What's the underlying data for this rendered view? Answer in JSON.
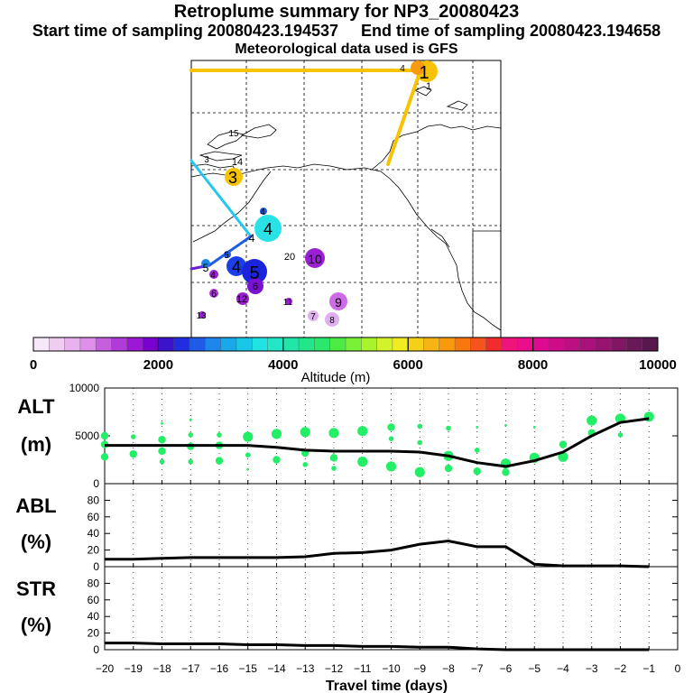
{
  "header": {
    "title": "Retroplume summary for NP3_20080423",
    "start_label": "Start time of sampling 20080423.194537",
    "end_label": "End time of sampling 20080423.194658",
    "met_label": "Meteorological data used is GFS"
  },
  "colorbar": {
    "label": "Altitude (m)",
    "ticks": [
      "0",
      "2000",
      "4000",
      "6000",
      "8000",
      "10000"
    ],
    "colors": [
      "#f6e8f8",
      "#efcdf1",
      "#e7b2ee",
      "#dd8fe9",
      "#c55fde",
      "#b03bd9",
      "#9b18d4",
      "#7a00d0",
      "#3a14cc",
      "#1f2ee0",
      "#1e5ce8",
      "#1e86ea",
      "#1aa8e8",
      "#18c6e6",
      "#22e3e3",
      "#22e6c6",
      "#22e6a6",
      "#22e688",
      "#2ae86a",
      "#4eea44",
      "#7af036",
      "#a8f22e",
      "#d4f22a",
      "#f0ec22",
      "#f6d018",
      "#f8b414",
      "#f89a10",
      "#f8780e",
      "#f6541e",
      "#f02c2e",
      "#f0147a",
      "#ea0e8c",
      "#de0a92",
      "#ce0c8a",
      "#bc1082",
      "#a8127a",
      "#961470",
      "#801664",
      "#6a1858",
      "#58184e"
    ]
  },
  "map_labels": [
    {
      "text": "1",
      "color": "#f7c300",
      "big": true
    },
    {
      "text": "3",
      "color": "#f7c300",
      "big": true
    },
    {
      "text": "4",
      "color": "#2ae2e6",
      "big": true
    },
    {
      "text": "4",
      "color": "#1a3fe6",
      "big": true
    },
    {
      "text": "5",
      "color": "#1a24dc",
      "big": true
    },
    {
      "text": "10",
      "color": "#9b20d4",
      "big": true
    },
    {
      "text": "9",
      "color": "#cd6be6",
      "big": true
    },
    {
      "text": "6",
      "color": "#7a10d0",
      "big": false
    },
    {
      "text": "12",
      "color": "#9b20d4",
      "big": false
    },
    {
      "text": "7",
      "color": "#d89ae8",
      "big": false
    },
    {
      "text": "8",
      "color": "#d89ae8",
      "big": false
    },
    {
      "text": "13",
      "color": "#9b20d4",
      "big": false
    },
    {
      "text": "20",
      "color": "#22e6b8",
      "big": false
    },
    {
      "text": "14",
      "color": "#22e6b8",
      "big": false
    },
    {
      "text": "15",
      "color": "#22e6b8",
      "big": false
    },
    {
      "text": "11",
      "color": "#9b20d4",
      "big": false
    }
  ],
  "chart_data": [
    {
      "type": "scatter",
      "panel": "ALT",
      "ylabel": "ALT\n(m)",
      "ylabel_lines": [
        "ALT",
        "(m)"
      ],
      "ylim": [
        0,
        10000
      ],
      "yticks": [
        "10000",
        "5000",
        "0"
      ],
      "x": [
        -20,
        -19,
        -18,
        -17,
        -16,
        -15,
        -14,
        -13,
        -12,
        -11,
        -10,
        -9,
        -8,
        -7,
        -6,
        -5,
        -4,
        -3,
        -2,
        -1
      ],
      "median_line": [
        4000,
        4000,
        4000,
        4000,
        4000,
        4000,
        3800,
        3500,
        3400,
        3400,
        3400,
        3300,
        2900,
        2200,
        1800,
        2400,
        3300,
        5000,
        6400,
        6800
      ],
      "points": [
        {
          "x": -20,
          "y": 5000,
          "s": 2
        },
        {
          "x": -20,
          "y": 4100,
          "s": 2
        },
        {
          "x": -20,
          "y": 2800,
          "s": 2
        },
        {
          "x": -19,
          "y": 4900,
          "s": 1
        },
        {
          "x": -19,
          "y": 3100,
          "s": 2
        },
        {
          "x": -18,
          "y": 6300,
          "s": 0
        },
        {
          "x": -18,
          "y": 4600,
          "s": 2
        },
        {
          "x": -18,
          "y": 3400,
          "s": 2
        },
        {
          "x": -18,
          "y": 2300,
          "s": 1
        },
        {
          "x": -17,
          "y": 6700,
          "s": 0
        },
        {
          "x": -17,
          "y": 5100,
          "s": 1
        },
        {
          "x": -17,
          "y": 3900,
          "s": 2
        },
        {
          "x": -17,
          "y": 2300,
          "s": 1
        },
        {
          "x": -16,
          "y": 5100,
          "s": 1
        },
        {
          "x": -16,
          "y": 4000,
          "s": 2
        },
        {
          "x": -16,
          "y": 2400,
          "s": 2
        },
        {
          "x": -15,
          "y": 4900,
          "s": 3
        },
        {
          "x": -15,
          "y": 3000,
          "s": 1
        },
        {
          "x": -15,
          "y": 1500,
          "s": 0
        },
        {
          "x": -14,
          "y": 5200,
          "s": 3
        },
        {
          "x": -14,
          "y": 2500,
          "s": 2
        },
        {
          "x": -13,
          "y": 5400,
          "s": 3
        },
        {
          "x": -13,
          "y": 3200,
          "s": 2
        },
        {
          "x": -13,
          "y": 2000,
          "s": 1
        },
        {
          "x": -12,
          "y": 5300,
          "s": 3
        },
        {
          "x": -12,
          "y": 2700,
          "s": 2
        },
        {
          "x": -12,
          "y": 1600,
          "s": 1
        },
        {
          "x": -11,
          "y": 5500,
          "s": 3
        },
        {
          "x": -11,
          "y": 2300,
          "s": 3
        },
        {
          "x": -10,
          "y": 5900,
          "s": 2
        },
        {
          "x": -10,
          "y": 4700,
          "s": 1
        },
        {
          "x": -10,
          "y": 1800,
          "s": 3
        },
        {
          "x": -9,
          "y": 6000,
          "s": 1
        },
        {
          "x": -9,
          "y": 4300,
          "s": 1
        },
        {
          "x": -9,
          "y": 1200,
          "s": 3
        },
        {
          "x": -8,
          "y": 5800,
          "s": 1
        },
        {
          "x": -8,
          "y": 2900,
          "s": 3
        },
        {
          "x": -8,
          "y": 1600,
          "s": 2
        },
        {
          "x": -7,
          "y": 5900,
          "s": 0
        },
        {
          "x": -7,
          "y": 3500,
          "s": 1
        },
        {
          "x": -7,
          "y": 1300,
          "s": 2
        },
        {
          "x": -6,
          "y": 6100,
          "s": 0
        },
        {
          "x": -6,
          "y": 2100,
          "s": 3
        },
        {
          "x": -6,
          "y": 1200,
          "s": 2
        },
        {
          "x": -5,
          "y": 5900,
          "s": 0
        },
        {
          "x": -5,
          "y": 2700,
          "s": 3
        },
        {
          "x": -4,
          "y": 4100,
          "s": 2
        },
        {
          "x": -4,
          "y": 2800,
          "s": 3
        },
        {
          "x": -3,
          "y": 6600,
          "s": 3
        },
        {
          "x": -3,
          "y": 5300,
          "s": 2
        },
        {
          "x": -2,
          "y": 6800,
          "s": 3
        },
        {
          "x": -2,
          "y": 5100,
          "s": 1
        },
        {
          "x": -1,
          "y": 7000,
          "s": 3
        }
      ]
    },
    {
      "type": "line",
      "panel": "ABL",
      "ylabel_lines": [
        "ABL",
        "(%)"
      ],
      "ylim": [
        0,
        100
      ],
      "yticks": [
        "80",
        "60",
        "40",
        "20",
        "0"
      ],
      "x": [
        -20,
        -19,
        -18,
        -17,
        -16,
        -15,
        -14,
        -13,
        -12,
        -11,
        -10,
        -9,
        -8,
        -7,
        -6,
        -5,
        -4,
        -3,
        -2,
        -1
      ],
      "values": [
        9,
        9,
        10,
        11,
        11,
        11,
        11,
        12,
        16,
        17,
        20,
        27,
        31,
        24,
        24,
        3,
        1,
        1,
        1,
        0
      ]
    },
    {
      "type": "line",
      "panel": "STR",
      "ylabel_lines": [
        "STR",
        "(%)"
      ],
      "ylim": [
        0,
        100
      ],
      "yticks": [
        "80",
        "60",
        "40",
        "20",
        "0"
      ],
      "x": [
        -20,
        -19,
        -18,
        -17,
        -16,
        -15,
        -14,
        -13,
        -12,
        -11,
        -10,
        -9,
        -8,
        -7,
        -6,
        -5,
        -4,
        -3,
        -2,
        -1
      ],
      "values": [
        8,
        8,
        7,
        7,
        7,
        6,
        6,
        5,
        5,
        4,
        4,
        3,
        3,
        1,
        0,
        0,
        0,
        0,
        0,
        0
      ]
    }
  ],
  "xaxis": {
    "label": "Travel time (days)",
    "ticks": [
      "−20",
      "−19",
      "−18",
      "−17",
      "−16",
      "−15",
      "−14",
      "−13",
      "−12",
      "−11",
      "−10",
      "−9",
      "−8",
      "−7",
      "−6",
      "−5",
      "−4",
      "−3",
      "−2",
      "−1",
      "0"
    ]
  }
}
